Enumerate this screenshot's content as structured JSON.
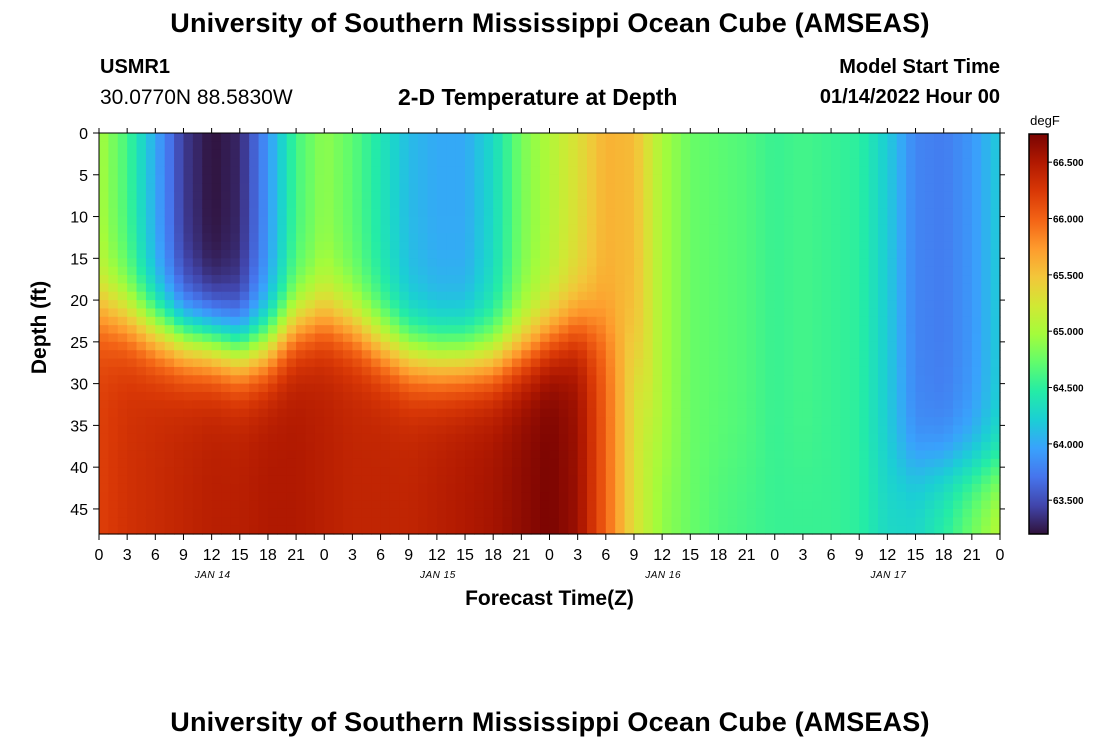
{
  "header": {
    "title": "University of Southern Mississippi Ocean Cube (AMSEAS)",
    "station": "USMR1",
    "coordinates": "30.0770N  88.5830W",
    "plot_title": "2-D Temperature at Depth",
    "start_label": "Model Start Time",
    "start_value": "01/14/2022 Hour 00"
  },
  "footer": {
    "title": "University of Southern Mississippi Ocean Cube (AMSEAS)"
  },
  "chart_data": {
    "type": "heatmap",
    "title": "2-D Temperature at Depth",
    "xlabel": "Forecast Time(Z)",
    "ylabel": "Depth (ft)",
    "x_tick_labels": [
      "0",
      "3",
      "6",
      "9",
      "12",
      "15",
      "18",
      "21",
      "0",
      "3",
      "6",
      "9",
      "12",
      "15",
      "18",
      "21",
      "0",
      "3",
      "6",
      "9",
      "12",
      "15",
      "18",
      "21",
      "0",
      "3",
      "6",
      "9",
      "12",
      "15",
      "18",
      "21",
      "0"
    ],
    "x_range_hours": [
      0,
      96
    ],
    "date_labels": [
      {
        "label": "JAN 14",
        "hour": 12
      },
      {
        "label": "JAN 15",
        "hour": 36
      },
      {
        "label": "JAN 16",
        "hour": 60
      },
      {
        "label": "JAN 17",
        "hour": 84
      }
    ],
    "y_ticks": [
      0,
      5,
      10,
      15,
      20,
      25,
      30,
      35,
      40,
      45
    ],
    "y_range": [
      0,
      48
    ],
    "y_inverted": true,
    "colorbar": {
      "unit": "degF",
      "range": [
        63.2,
        66.75
      ],
      "ticks": [
        63.5,
        64.0,
        64.5,
        65.0,
        65.5,
        66.0,
        66.5
      ],
      "tick_labels": [
        "63.500",
        "64.000",
        "64.500",
        "65.000",
        "65.500",
        "66.000",
        "66.500"
      ],
      "colors": [
        "#30123b",
        "#4145ab",
        "#4675ed",
        "#39a2fc",
        "#1bcfd4",
        "#24eca6",
        "#61fc6c",
        "#a4fc3b",
        "#d1e834",
        "#f3c63a",
        "#fe9b2d",
        "#f36315",
        "#d93806",
        "#b11901",
        "#7a0402"
      ]
    },
    "stations_hours": [
      0,
      3,
      6,
      9,
      12,
      15,
      18,
      21,
      24,
      27,
      30,
      33,
      36,
      39,
      42,
      45,
      48,
      51,
      54,
      57,
      60,
      63,
      66,
      69,
      72,
      75,
      78,
      81,
      84,
      87,
      90,
      93,
      96
    ],
    "thermocline_depth_ft": [
      21,
      22,
      23.5,
      24.5,
      25,
      26,
      25.5,
      23,
      22,
      23,
      25,
      26.5,
      27,
      27,
      27,
      26,
      24.5,
      23,
      23,
      25,
      40,
      40,
      40,
      40,
      40,
      40,
      40,
      40,
      40,
      40,
      40,
      40,
      40
    ],
    "surface_temp_degF": [
      65.0,
      64.6,
      64.0,
      63.4,
      63.2,
      63.3,
      63.9,
      64.6,
      64.9,
      64.7,
      64.4,
      64.1,
      64.0,
      64.0,
      64.3,
      64.8,
      65.05,
      65.3,
      65.6,
      65.55,
      65.0,
      64.75,
      64.7,
      64.65,
      64.55,
      64.6,
      64.55,
      64.5,
      64.2,
      63.8,
      63.75,
      63.9,
      64.2
    ],
    "bottom_temp_degF": [
      66.2,
      66.3,
      66.35,
      66.4,
      66.45,
      66.45,
      66.5,
      66.5,
      66.45,
      66.4,
      66.4,
      66.4,
      66.45,
      66.5,
      66.55,
      66.65,
      66.75,
      66.6,
      66.0,
      65.3,
      64.9,
      64.75,
      64.65,
      64.6,
      64.55,
      64.55,
      64.55,
      64.5,
      64.3,
      64.3,
      64.5,
      64.8,
      65.1
    ]
  }
}
